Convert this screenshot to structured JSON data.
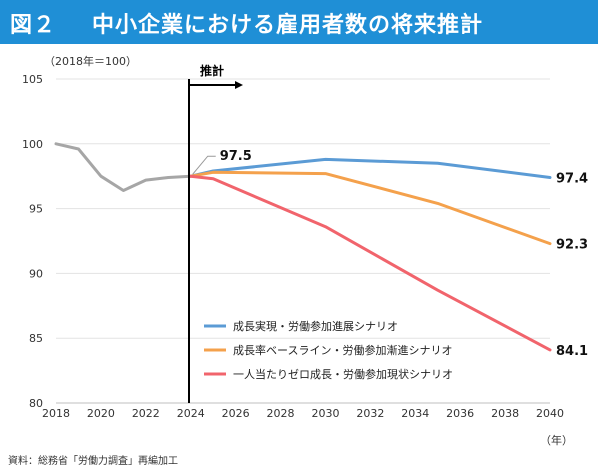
{
  "title": {
    "number": "図２",
    "text": "中小企業における雇用者数の将来推計"
  },
  "source_note": "資料：総務省「労働力調査」再編加工",
  "chart_data": {
    "type": "line",
    "base_note": "（2018年＝100）",
    "x_unit": "（年）",
    "forecast_label": "推計",
    "forecast_start": 2024,
    "xlim": [
      2018,
      2040
    ],
    "ylim": [
      80,
      105
    ],
    "x_ticks": [
      2018,
      2020,
      2022,
      2024,
      2026,
      2028,
      2030,
      2032,
      2034,
      2036,
      2038,
      2040
    ],
    "y_ticks": [
      80,
      85,
      90,
      95,
      100,
      105
    ],
    "series": [
      {
        "key": "actual",
        "color": "#a6a6a6",
        "points": [
          [
            2018,
            100.0
          ],
          [
            2019,
            99.6
          ],
          [
            2020,
            97.5
          ],
          [
            2021,
            96.4
          ],
          [
            2022,
            97.2
          ],
          [
            2023,
            97.4
          ],
          [
            2024,
            97.5
          ]
        ]
      },
      {
        "key": "growth",
        "name": "成長実現・労働参加進展シナリオ",
        "color": "#5b9bd5",
        "points": [
          [
            2024,
            97.5
          ],
          [
            2025,
            97.9
          ],
          [
            2030,
            98.8
          ],
          [
            2035,
            98.5
          ],
          [
            2040,
            97.4
          ]
        ]
      },
      {
        "key": "baseline",
        "name": "成長率ベースライン・労働参加漸進シナリオ",
        "color": "#f4a14c",
        "points": [
          [
            2024,
            97.5
          ],
          [
            2025,
            97.8
          ],
          [
            2030,
            97.7
          ],
          [
            2035,
            95.4
          ],
          [
            2040,
            92.3
          ]
        ]
      },
      {
        "key": "zero",
        "name": "一人当たりゼロ成長・労働参加現状シナリオ",
        "color": "#f1646c",
        "points": [
          [
            2024,
            97.5
          ],
          [
            2025,
            97.3
          ],
          [
            2030,
            93.6
          ],
          [
            2035,
            88.7
          ],
          [
            2040,
            84.1
          ]
        ]
      }
    ],
    "annotations": [
      {
        "text": "97.5",
        "x": 2024,
        "y": 97.5
      },
      {
        "text": "97.4",
        "x": 2040,
        "y": 97.4
      },
      {
        "text": "92.3",
        "x": 2040,
        "y": 92.3
      },
      {
        "text": "84.1",
        "x": 2040,
        "y": 84.1
      }
    ]
  }
}
